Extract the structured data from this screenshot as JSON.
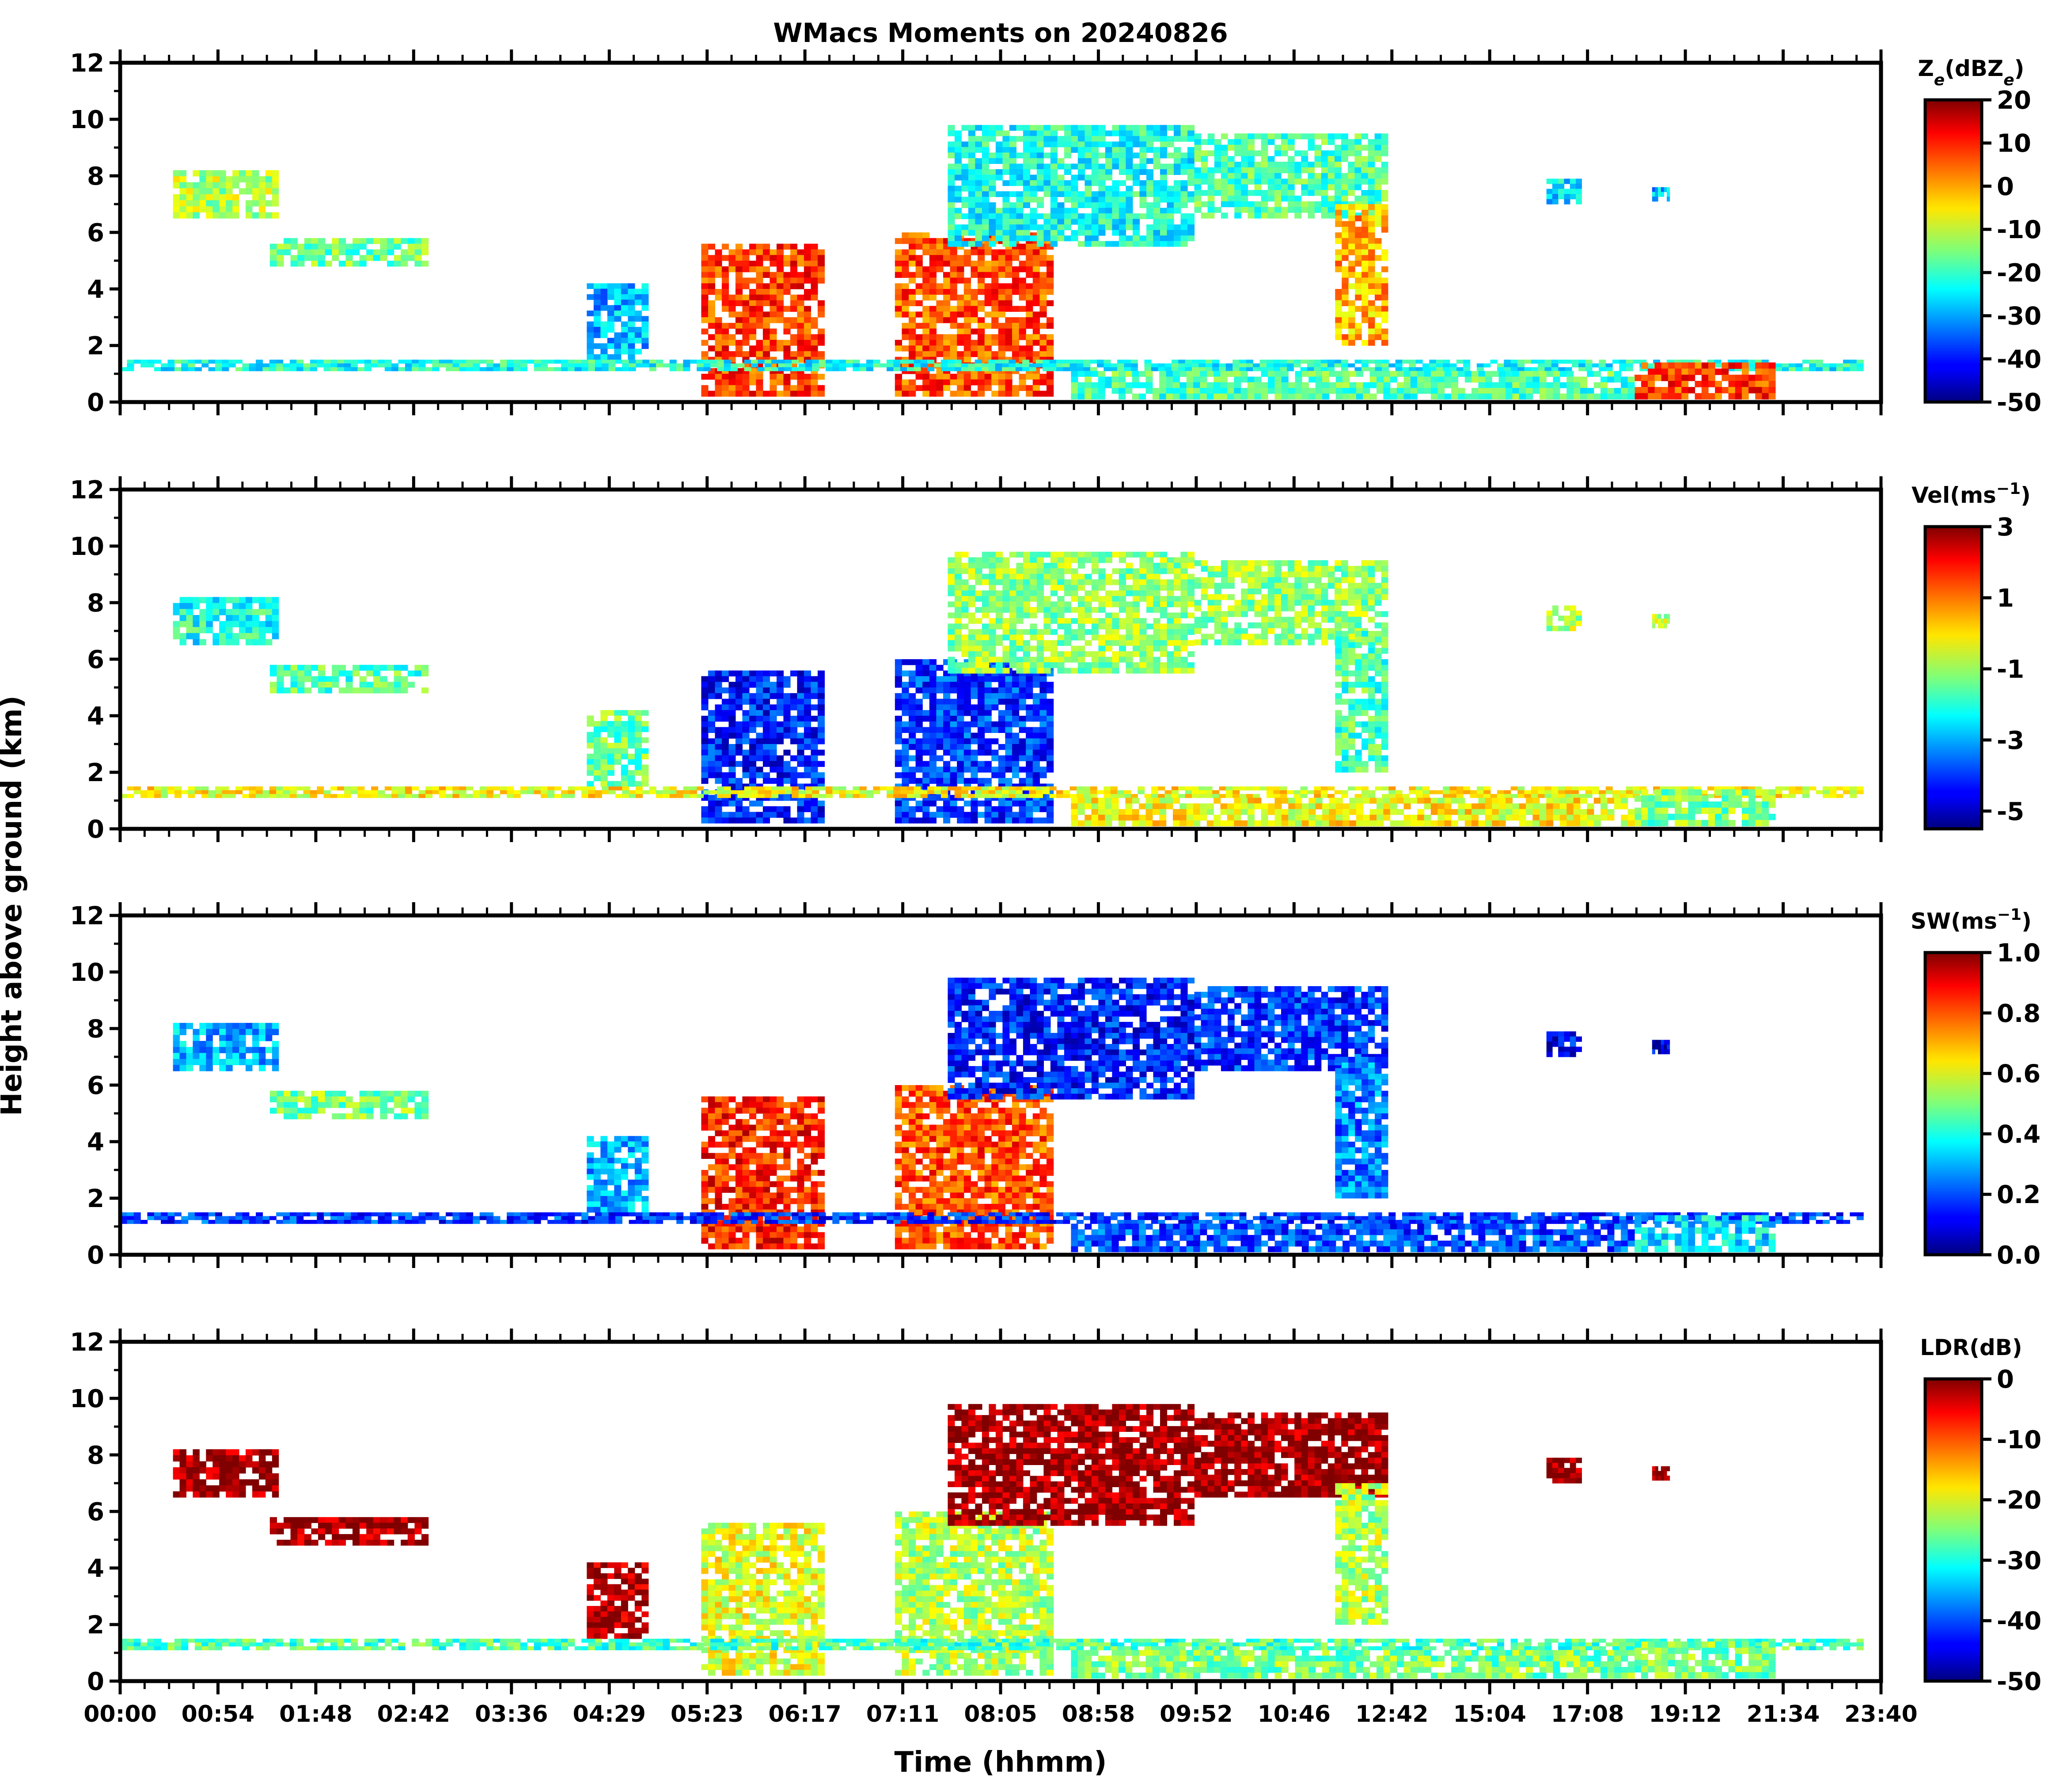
{
  "figure": {
    "title": "WMacs Moments on 20240826",
    "ylabel": "Height above ground (km)",
    "xlabel": "Time (hhmm)"
  },
  "chart_data": {
    "type": "heatmap",
    "x_tick_labels": [
      "00:00",
      "00:54",
      "01:48",
      "02:42",
      "03:36",
      "04:29",
      "05:23",
      "06:17",
      "07:11",
      "08:05",
      "08:58",
      "09:52",
      "10:46",
      "12:42",
      "15:04",
      "17:08",
      "19:12",
      "21:34",
      "23:40"
    ],
    "y_ticks": [
      0,
      2,
      4,
      6,
      8,
      10,
      12
    ],
    "ylim": [
      0,
      12
    ],
    "grid": false,
    "panels": [
      {
        "colorbar_label": "Ze(dBZe)",
        "colorbar_label_main": "Z",
        "colorbar_label_sub": "e",
        "colorbar_label_mid": "(dBZ",
        "colorbar_label_sub2": "e",
        "colorbar_label_end": ")",
        "range": [
          -50,
          20
        ],
        "ticks": [
          20,
          10,
          0,
          -10,
          -20,
          -30,
          -40,
          -50
        ],
        "tick_labels": [
          "20",
          "10",
          "0",
          "-10",
          "-20",
          "-30",
          "-40",
          "-50"
        ]
      },
      {
        "colorbar_label": "Vel(ms-1)",
        "colorbar_label_main": "Vel(ms",
        "colorbar_label_sup": "−1",
        "colorbar_label_end": ")",
        "range": [
          -5.5,
          3
        ],
        "ticks": [
          3,
          1,
          -1,
          -3,
          -5
        ],
        "tick_labels": [
          "3",
          "1",
          "-1",
          "-3",
          "-5"
        ]
      },
      {
        "colorbar_label": "SW(ms-1)",
        "colorbar_label_main": "SW(ms",
        "colorbar_label_sup": "−1",
        "colorbar_label_end": ")",
        "range": [
          0,
          1
        ],
        "ticks": [
          1.0,
          0.8,
          0.6,
          0.4,
          0.2,
          0.0
        ],
        "tick_labels": [
          "1.0",
          "0.8",
          "0.6",
          "0.4",
          "0.2",
          "0.0"
        ]
      },
      {
        "colorbar_label": "LDR(dB)",
        "colorbar_label_main": "LDR(dB)",
        "range": [
          -50,
          0
        ],
        "ticks": [
          0,
          -10,
          -20,
          -30,
          -40,
          -50
        ],
        "tick_labels": [
          "0",
          "-10",
          "-20",
          "-30",
          "-40",
          "-50"
        ]
      }
    ]
  }
}
